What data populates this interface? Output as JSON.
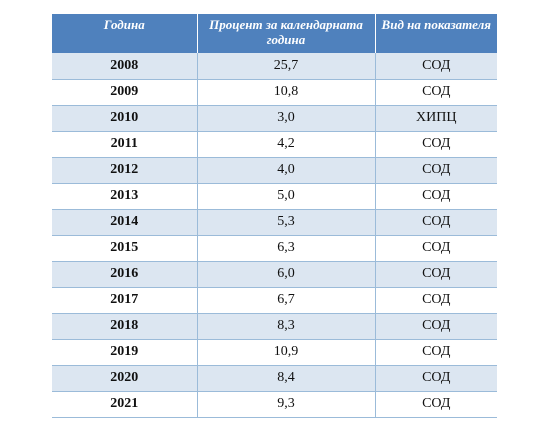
{
  "table": {
    "headers": [
      "Година",
      "Процент за календарната година",
      "Вид на показателя"
    ],
    "rows": [
      {
        "year": "2008",
        "percent": "25,7",
        "type": "СОД"
      },
      {
        "year": "2009",
        "percent": "10,8",
        "type": "СОД"
      },
      {
        "year": "2010",
        "percent": "3,0",
        "type": "ХИПЦ"
      },
      {
        "year": "2011",
        "percent": "4,2",
        "type": "СОД"
      },
      {
        "year": "2012",
        "percent": "4,0",
        "type": "СОД"
      },
      {
        "year": "2013",
        "percent": "5,0",
        "type": "СОД"
      },
      {
        "year": "2014",
        "percent": "5,3",
        "type": "СОД"
      },
      {
        "year": "2015",
        "percent": "6,3",
        "type": "СОД"
      },
      {
        "year": "2016",
        "percent": "6,0",
        "type": "СОД"
      },
      {
        "year": "2017",
        "percent": "6,7",
        "type": "СОД"
      },
      {
        "year": "2018",
        "percent": "8,3",
        "type": "СОД"
      },
      {
        "year": "2019",
        "percent": "10,9",
        "type": "СОД"
      },
      {
        "year": "2020",
        "percent": "8,4",
        "type": "СОД"
      },
      {
        "year": "2021",
        "percent": "9,3",
        "type": "СОД"
      }
    ]
  },
  "colors": {
    "header_bg": "#4f81bd",
    "band_bg": "#dce6f1"
  }
}
